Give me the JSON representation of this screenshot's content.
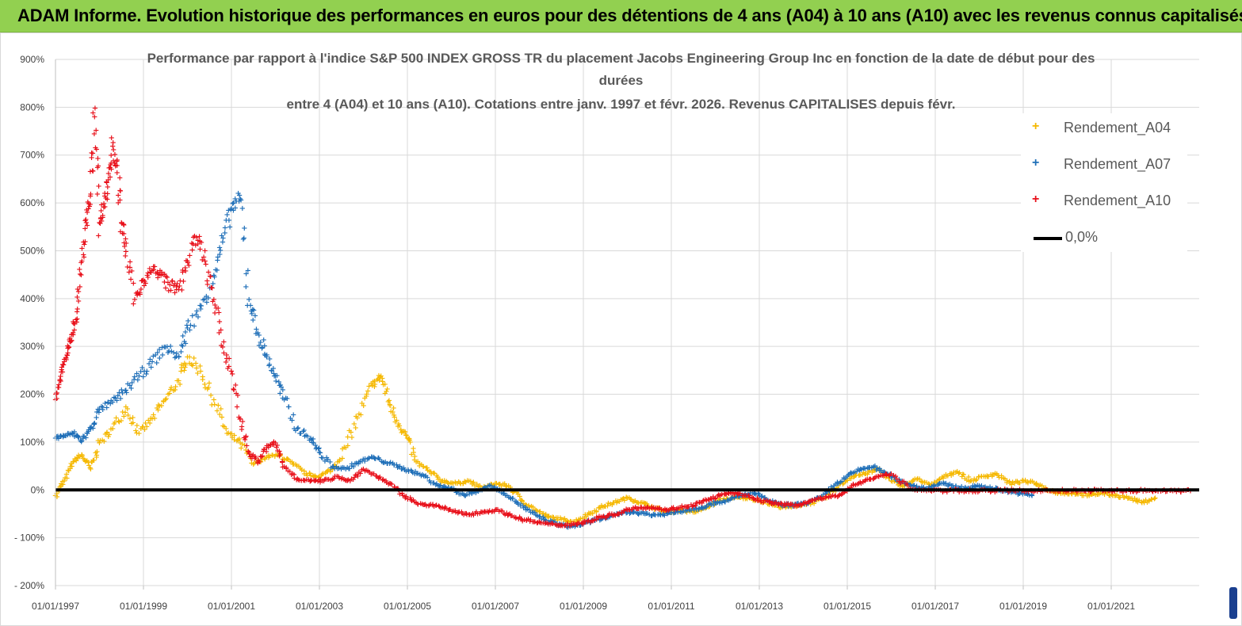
{
  "banner": {
    "title": "ADAM Informe. Evolution historique des performances en euros pour des détentions de 4 ans (A04) à 10 ans (A10) avec les revenus connus capitalisés"
  },
  "colors": {
    "banner_bg": "#92d050",
    "A04": "#f5b800",
    "A07": "#1f6fb8",
    "A10": "#e8101a",
    "zero_line": "#000000",
    "grid": "#d9d9d9",
    "axis_text": "#404040"
  },
  "chart_data": {
    "type": "scatter",
    "title_lines": [
      "Performance par rapport à l'indice S&P 500 INDEX GROSS TR  du placement Jacobs Engineering Group Inc en fonction de la date de début pour des",
      "durées",
      "entre 4 (A04) et 10 ans (A10). Cotations entre janv. 1997 et févr. 2026. Revenus CAPITALISES depuis févr."
    ],
    "xlabel": "",
    "ylabel": "",
    "xlim": [
      1997.0,
      2023.0
    ],
    "ylim": [
      -200,
      900
    ],
    "y_ticks": [
      -200,
      -100,
      0,
      100,
      200,
      300,
      400,
      500,
      600,
      700,
      800,
      900
    ],
    "y_tick_labels": [
      "- 200%",
      "- 100%",
      "0%",
      "100%",
      "200%",
      "300%",
      "400%",
      "500%",
      "600%",
      "700%",
      "800%",
      "900%"
    ],
    "x_ticks": [
      1997,
      1999,
      2001,
      2003,
      2005,
      2007,
      2009,
      2011,
      2013,
      2015,
      2017,
      2019,
      2021
    ],
    "x_tick_labels": [
      "01/01/1997",
      "01/01/1999",
      "01/01/2001",
      "01/01/2003",
      "01/01/2005",
      "01/01/2007",
      "01/01/2009",
      "01/01/2011",
      "01/01/2013",
      "01/01/2015",
      "01/01/2017",
      "01/01/2019",
      "01/01/2021"
    ],
    "legend": [
      "Rendement_A04",
      "Rendement_A07",
      "Rendement_A10",
      "0,0%"
    ],
    "legend_position": "top-right",
    "series": [
      {
        "name": "Rendement_A04",
        "x": [
          1997.0,
          1997.2,
          1997.4,
          1997.6,
          1997.8,
          1998.0,
          1998.3,
          1998.6,
          1998.9,
          1999.2,
          1999.5,
          1999.8,
          2000.0,
          2000.3,
          2000.6,
          2000.9,
          2001.2,
          2001.5,
          2001.8,
          2002.1,
          2002.4,
          2002.7,
          2003.0,
          2003.3,
          2003.6,
          2003.9,
          2004.2,
          2004.4,
          2004.6,
          2004.8,
          2005.0,
          2005.2,
          2005.5,
          2005.8,
          2006.1,
          2006.4,
          2006.7,
          2007.0,
          2007.3,
          2007.6,
          2007.9,
          2008.2,
          2008.5,
          2008.8,
          2009.1,
          2009.4,
          2009.7,
          2010.0,
          2010.3,
          2010.6,
          2010.9,
          2011.2,
          2011.5,
          2011.8,
          2012.1,
          2012.4,
          2012.7,
          2013.0,
          2013.3,
          2013.6,
          2013.9,
          2014.2,
          2014.5,
          2014.8,
          2015.1,
          2015.4,
          2015.7,
          2016.0,
          2016.3,
          2016.6,
          2016.9,
          2017.2,
          2017.5,
          2017.8,
          2018.1,
          2018.4,
          2018.7,
          2019.0,
          2019.3,
          2019.6,
          2019.9,
          2020.2,
          2020.5,
          2020.8,
          2021.1,
          2021.4,
          2021.7,
          2022.0
        ],
        "values": [
          -10,
          20,
          60,
          75,
          45,
          100,
          130,
          175,
          120,
          150,
          190,
          230,
          280,
          250,
          190,
          120,
          100,
          55,
          70,
          75,
          55,
          35,
          30,
          45,
          90,
          160,
          220,
          240,
          180,
          140,
          110,
          60,
          40,
          20,
          15,
          20,
          5,
          15,
          10,
          -20,
          -40,
          -55,
          -60,
          -65,
          -50,
          -35,
          -25,
          -15,
          -25,
          -35,
          -45,
          -40,
          -45,
          -35,
          -20,
          -15,
          -15,
          -20,
          -30,
          -35,
          -30,
          -25,
          -15,
          10,
          30,
          35,
          45,
          20,
          10,
          25,
          10,
          30,
          40,
          20,
          30,
          35,
          15,
          20,
          15,
          0,
          -5,
          -5,
          -10,
          -5,
          -10,
          -15,
          -25,
          -15
        ]
      },
      {
        "name": "Rendement_A07",
        "x": [
          1997.0,
          1997.2,
          1997.4,
          1997.6,
          1997.8,
          1998.0,
          1998.3,
          1998.6,
          1998.9,
          1999.2,
          1999.5,
          1999.8,
          2000.0,
          2000.3,
          2000.6,
          2000.8,
          2001.0,
          2001.2,
          2001.4,
          2001.6,
          2001.8,
          2002.0,
          2002.2,
          2002.5,
          2002.8,
          2003.0,
          2003.3,
          2003.6,
          2003.9,
          2004.2,
          2004.5,
          2004.8,
          2005.1,
          2005.4,
          2005.7,
          2006.0,
          2006.3,
          2006.6,
          2006.9,
          2007.2,
          2007.5,
          2007.8,
          2008.1,
          2008.4,
          2008.7,
          2009.0,
          2009.3,
          2009.6,
          2009.9,
          2010.2,
          2010.5,
          2010.8,
          2011.1,
          2011.4,
          2011.7,
          2012.0,
          2012.3,
          2012.6,
          2012.9,
          2013.2,
          2013.5,
          2013.8,
          2014.1,
          2014.4,
          2014.7,
          2015.0,
          2015.3,
          2015.6,
          2015.9,
          2016.2,
          2016.5,
          2016.8,
          2017.1,
          2017.4,
          2017.7,
          2018.0,
          2018.3,
          2018.6,
          2018.9,
          2019.2
        ],
        "values": [
          110,
          115,
          120,
          105,
          130,
          170,
          185,
          210,
          240,
          270,
          300,
          280,
          340,
          380,
          450,
          520,
          590,
          610,
          400,
          330,
          280,
          240,
          190,
          130,
          110,
          80,
          50,
          45,
          60,
          70,
          60,
          50,
          40,
          30,
          10,
          5,
          -10,
          0,
          10,
          -5,
          -25,
          -45,
          -60,
          -70,
          -75,
          -70,
          -60,
          -55,
          -45,
          -45,
          -50,
          -50,
          -45,
          -40,
          -35,
          -25,
          -20,
          -10,
          -5,
          -20,
          -30,
          -30,
          -25,
          -15,
          10,
          30,
          45,
          50,
          35,
          20,
          10,
          5,
          15,
          10,
          5,
          10,
          5,
          0,
          -5,
          -10
        ]
      },
      {
        "name": "Rendement_A10",
        "x": [
          1997.0,
          1997.1,
          1997.2,
          1997.3,
          1997.4,
          1997.5,
          1997.6,
          1997.7,
          1997.8,
          1997.9,
          1998.0,
          1998.1,
          1998.2,
          1998.3,
          1998.4,
          1998.5,
          1998.6,
          1998.8,
          1999.0,
          1999.2,
          1999.4,
          1999.6,
          1999.8,
          2000.0,
          2000.2,
          2000.4,
          2000.6,
          2000.8,
          2001.0,
          2001.2,
          2001.4,
          2001.6,
          2001.8,
          2002.0,
          2002.2,
          2002.5,
          2002.8,
          2003.1,
          2003.4,
          2003.7,
          2004.0,
          2004.3,
          2004.6,
          2004.9,
          2005.2,
          2005.5,
          2005.8,
          2006.1,
          2006.4,
          2006.7,
          2007.0,
          2007.3,
          2007.6,
          2007.9,
          2008.2,
          2008.5,
          2008.8,
          2009.1,
          2009.4,
          2009.7,
          2010.0,
          2010.3,
          2010.6,
          2010.9,
          2011.2,
          2011.5,
          2011.8,
          2012.1,
          2012.4,
          2012.7,
          2013.0,
          2013.3,
          2013.6,
          2013.9,
          2014.2,
          2014.5,
          2014.8,
          2015.1,
          2015.4,
          2015.7,
          2016.0,
          2016.4,
          2016.8,
          2017.2,
          2017.6,
          2018.0,
          2018.4,
          2018.8,
          2019.2,
          2019.6,
          2020.0,
          2020.4,
          2020.8,
          2021.2,
          2021.6,
          2022.0,
          2022.4,
          2022.8
        ],
        "values": [
          190,
          230,
          270,
          300,
          330,
          380,
          480,
          560,
          620,
          800,
          560,
          600,
          650,
          720,
          680,
          560,
          500,
          400,
          440,
          460,
          450,
          430,
          420,
          480,
          530,
          480,
          400,
          300,
          250,
          150,
          80,
          60,
          90,
          100,
          50,
          25,
          20,
          20,
          30,
          20,
          45,
          30,
          15,
          -10,
          -25,
          -30,
          -35,
          -45,
          -50,
          -45,
          -40,
          -50,
          -60,
          -65,
          -70,
          -72,
          -70,
          -65,
          -55,
          -50,
          -40,
          -35,
          -35,
          -40,
          -35,
          -30,
          -20,
          -10,
          -5,
          -10,
          -20,
          -25,
          -30,
          -30,
          -20,
          -15,
          -10,
          10,
          20,
          30,
          35,
          5,
          0,
          0,
          0,
          0,
          0,
          0,
          0,
          0,
          0,
          0,
          0,
          0,
          0,
          0,
          0,
          0
        ]
      },
      {
        "name": "0,0%",
        "x": [
          1997.0,
          2023.0
        ],
        "values": [
          0,
          0
        ]
      }
    ]
  }
}
